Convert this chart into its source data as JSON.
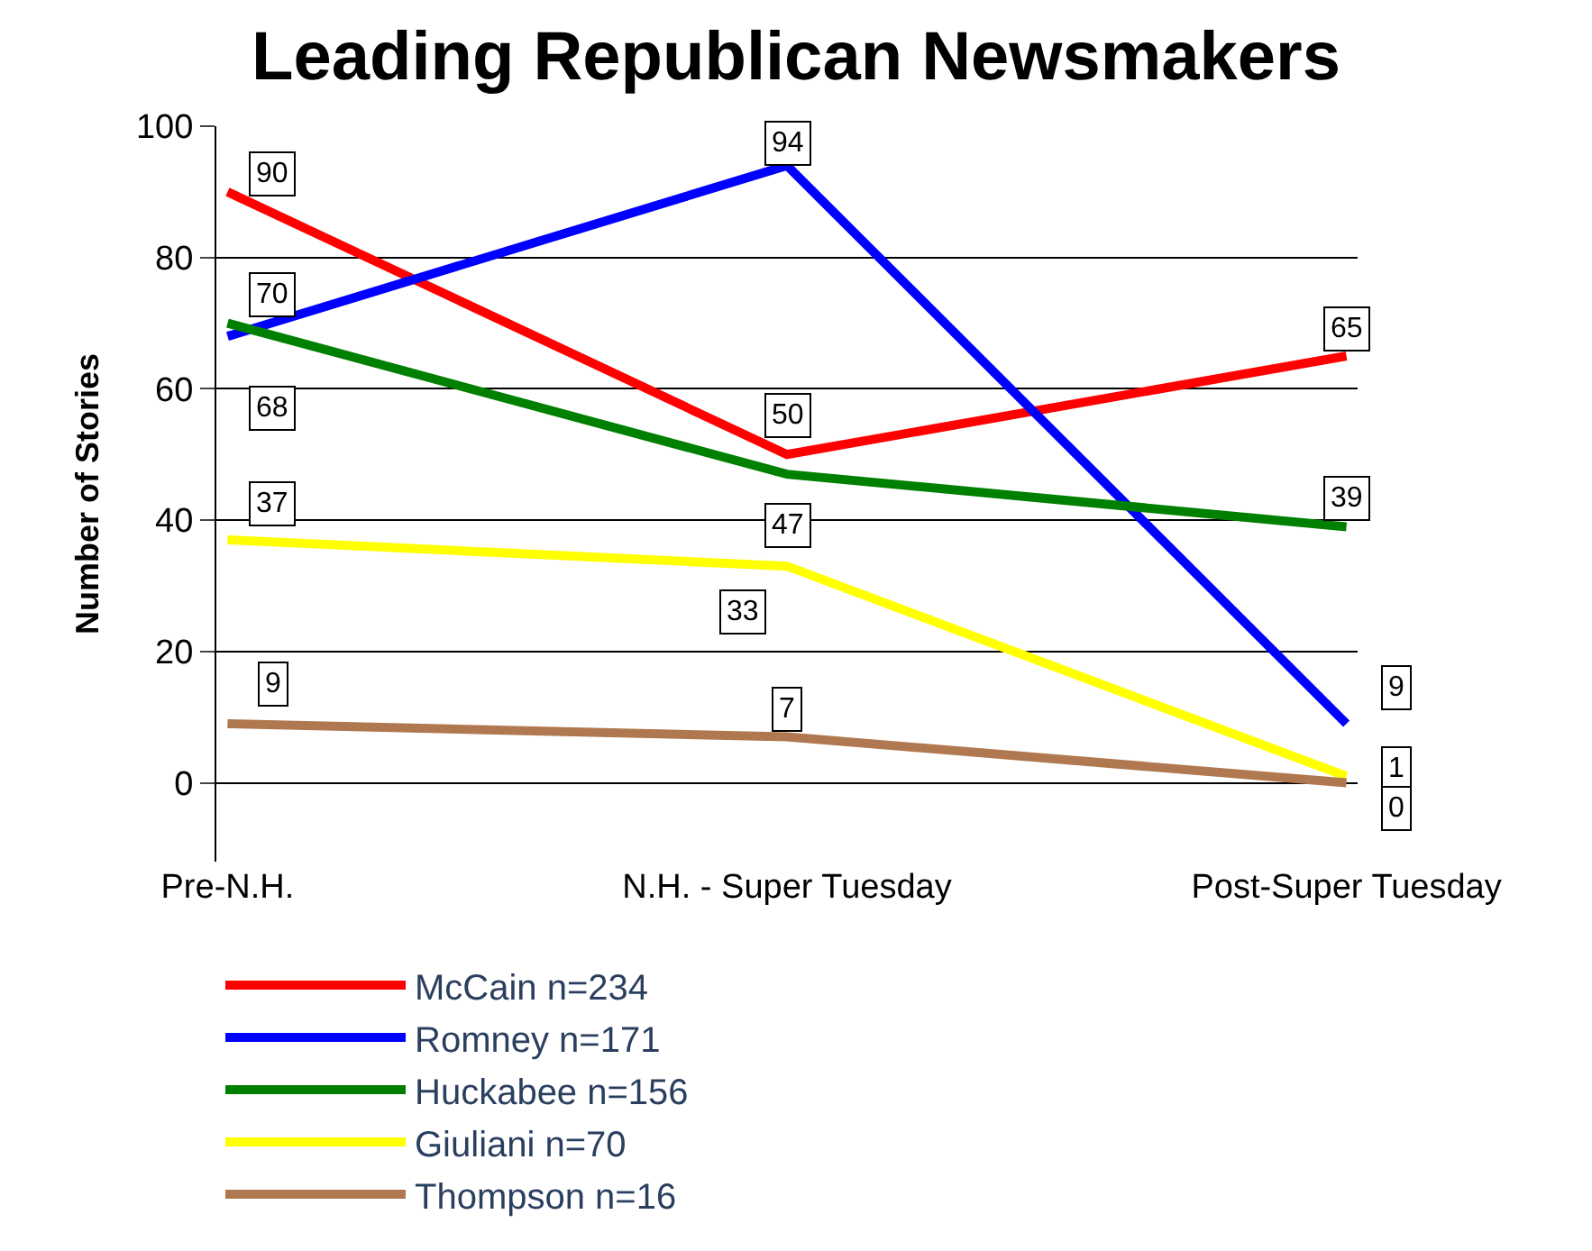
{
  "chart_data": {
    "type": "line",
    "title": "Leading Republican Newsmakers",
    "ylabel": "Number of Stories",
    "categories": [
      "Pre-N.H.",
      "N.H. - Super Tuesday",
      "Post-Super Tuesday"
    ],
    "series": [
      {
        "name": "McCain n=234",
        "color": "#ff0000",
        "values": [
          90,
          50,
          65
        ]
      },
      {
        "name": "Romney n=171",
        "color": "#0000ff",
        "values": [
          68,
          94,
          9
        ]
      },
      {
        "name": "Huckabee n=156",
        "color": "#008000",
        "values": [
          70,
          47,
          39
        ]
      },
      {
        "name": "Giuliani n=70",
        "color": "#ffff00",
        "values": [
          37,
          33,
          1
        ]
      },
      {
        "name": "Thompson n=16",
        "color": "#b07850",
        "values": [
          9,
          7,
          0
        ]
      }
    ],
    "ylim": [
      -12,
      100
    ],
    "yticks": [
      0,
      20,
      40,
      60,
      80,
      100
    ],
    "grid": "y",
    "legend": "bottom",
    "marker": "none",
    "line_style": "solid",
    "data_labels": true
  }
}
